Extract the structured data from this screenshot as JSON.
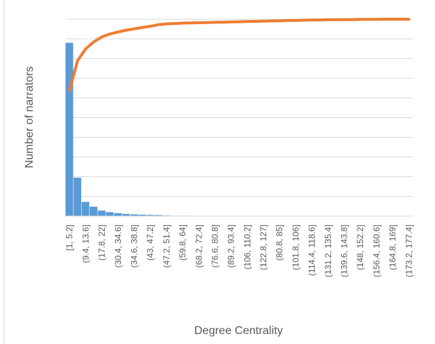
{
  "chart_data": {
    "type": "bar",
    "xlabel": "Degree Centrality",
    "ylabel": "Number of narrators",
    "tick_labels": [
      "[1, 5.2]",
      "(9.4, 13.6]",
      "(17.8, 22]",
      "(30.4, 34.6]",
      "(34.6, 38.8]",
      "(43, 47.2]",
      "(47.2, 51.4]",
      "(59.8, 64]",
      "(68.2, 72.4]",
      "(76.6, 80.8]",
      "(89.2, 93.4]",
      "(106, 110.2]",
      "(122.8, 127]",
      "(80.8, 85]",
      "(101.8, 106]",
      "(114.4, 118.6]",
      "(131.2, 135.4]",
      "(139.6, 143.8]",
      "(148, 152.2]",
      "(156.4, 160.6]",
      "(164.8, 169]",
      "(173.2, 177.4]"
    ],
    "bin_count": 43,
    "ylim": [
      0,
      100
    ],
    "grid": true,
    "legend": "none",
    "series": [
      {
        "kind": "bar",
        "color": "#5b9bd5",
        "values": [
          88,
          19.5,
          7.2,
          4.8,
          2.8,
          2.0,
          1.5,
          1.1,
          0.9,
          0.7,
          0.6,
          0.5,
          0.3,
          0.2,
          0.2,
          0.2,
          0.1,
          0.1,
          0.1,
          0.1,
          0.1,
          0.1,
          0.1,
          0,
          0,
          0,
          0,
          0,
          0,
          0,
          0,
          0,
          0,
          0,
          0,
          0,
          0,
          0,
          0,
          0,
          0,
          0,
          0
        ]
      },
      {
        "kind": "line",
        "color": "#ed7d31",
        "values": [
          64,
          79,
          85,
          88.5,
          91,
          92.5,
          93.5,
          94.4,
          95.1,
          95.8,
          96.4,
          97.2,
          97.6,
          97.8,
          98.0,
          98.1,
          98.2,
          98.3,
          98.4,
          98.5,
          98.6,
          98.7,
          98.8,
          98.9,
          99.0,
          99.1,
          99.2,
          99.3,
          99.4,
          99.5,
          99.6,
          99.6,
          99.7,
          99.7,
          99.8,
          99.8,
          99.9,
          99.9,
          99.9,
          100,
          100,
          100,
          100
        ]
      }
    ]
  }
}
